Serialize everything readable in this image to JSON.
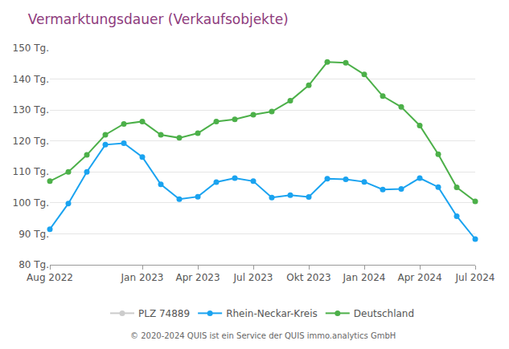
{
  "chart_data": {
    "type": "line",
    "title": "Vermarktungsdauer (Verkaufsobjekte)",
    "footer": "© 2020-2024 QUIS ist ein Service der QUIS immo.analytics GmbH",
    "categories": [
      "Aug 2022",
      null,
      null,
      null,
      null,
      "Jan 2023",
      null,
      null,
      "Apr 2023",
      null,
      null,
      "Jul 2023",
      null,
      null,
      "Okt 2023",
      null,
      null,
      "Jan 2024",
      null,
      null,
      "Apr 2024",
      null,
      null,
      "Jul 2024"
    ],
    "series": [
      {
        "name": "PLZ 74889",
        "color": "#cccccc",
        "values": [
          null,
          null,
          null,
          null,
          null,
          null,
          null,
          null,
          null,
          null,
          null,
          null,
          null,
          null,
          null,
          null,
          null,
          null,
          null,
          null,
          null,
          null,
          null,
          null
        ]
      },
      {
        "name": "Rhein-Neckar-Kreis",
        "color": "#1aa3f0",
        "values": [
          91.5,
          99.8,
          110,
          118.8,
          119.3,
          114.8,
          106,
          101.2,
          102,
          106.7,
          108,
          107,
          101.7,
          102.5,
          101.9,
          107.8,
          107.6,
          106.8,
          104.3,
          104.5,
          108,
          105.1,
          95.7,
          88.3
        ]
      },
      {
        "name": "Deutschland",
        "color": "#4cb049",
        "values": [
          107,
          110,
          115.5,
          122,
          125.5,
          126.3,
          122,
          121,
          122.5,
          126.3,
          127,
          128.5,
          129.5,
          133,
          138,
          145.5,
          145.3,
          141.5,
          134.5,
          131,
          125,
          115.7,
          105,
          100.5
        ]
      }
    ],
    "ylim": [
      80,
      150
    ],
    "yticks": [
      {
        "value": 80,
        "label": "80 Tg."
      },
      {
        "value": 90,
        "label": "90 Tg."
      },
      {
        "value": 100,
        "label": "100 Tg."
      },
      {
        "value": 110,
        "label": "110 Tg."
      },
      {
        "value": 120,
        "label": "120 Tg."
      },
      {
        "value": 130,
        "label": "130 Tg."
      },
      {
        "value": 140,
        "label": "140 Tg."
      },
      {
        "value": 150,
        "label": "150 Tg."
      }
    ],
    "grid": true,
    "legend": "bottom",
    "marker": "circle"
  }
}
